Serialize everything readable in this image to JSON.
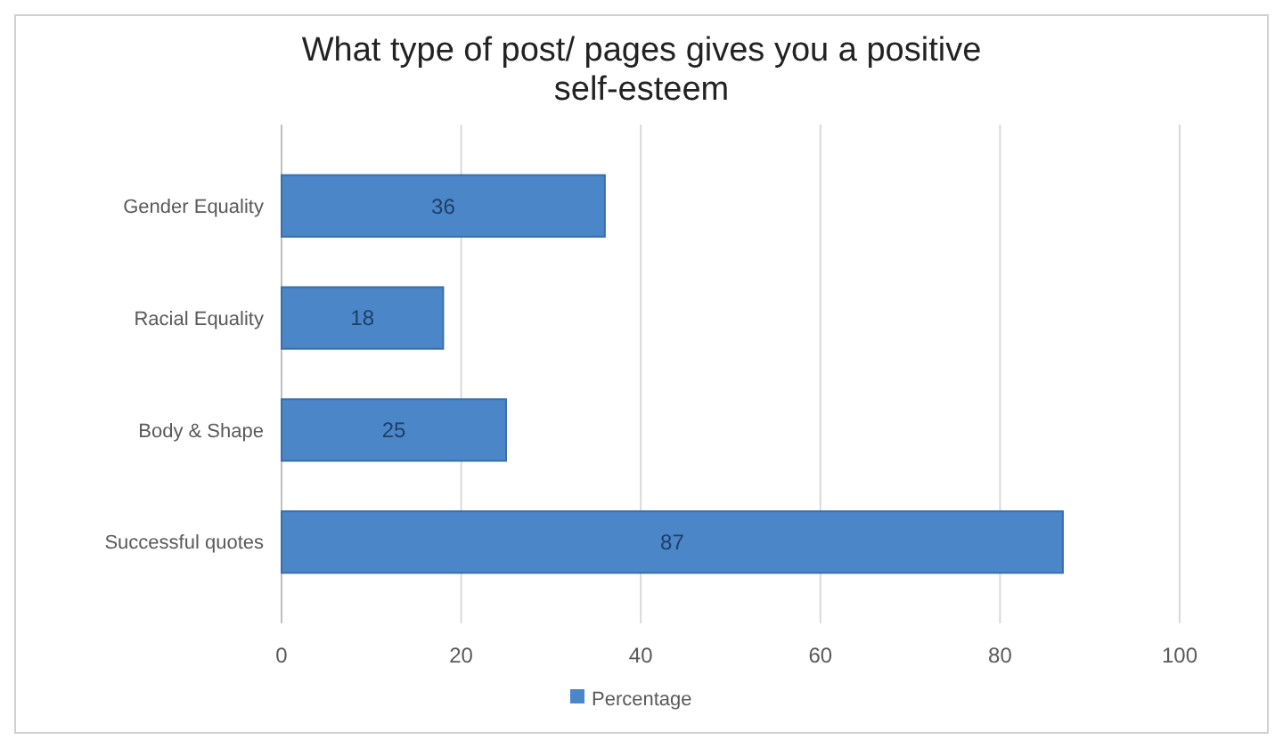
{
  "chart_data": {
    "type": "bar",
    "orientation": "horizontal",
    "title": "What type of post/ pages gives you a positive self-esteem",
    "categories": [
      "Gender Equality",
      "Racial Equality",
      "Body & Shape",
      "Successful quotes"
    ],
    "series": [
      {
        "name": "Percentage",
        "color": "#4a86c8",
        "values": [
          36,
          18,
          25,
          87
        ]
      }
    ],
    "xlim": [
      0,
      100
    ],
    "xticks": [
      0,
      20,
      40,
      60,
      80,
      100
    ],
    "grid": "x",
    "legend": "bottom",
    "data_labels": true
  }
}
